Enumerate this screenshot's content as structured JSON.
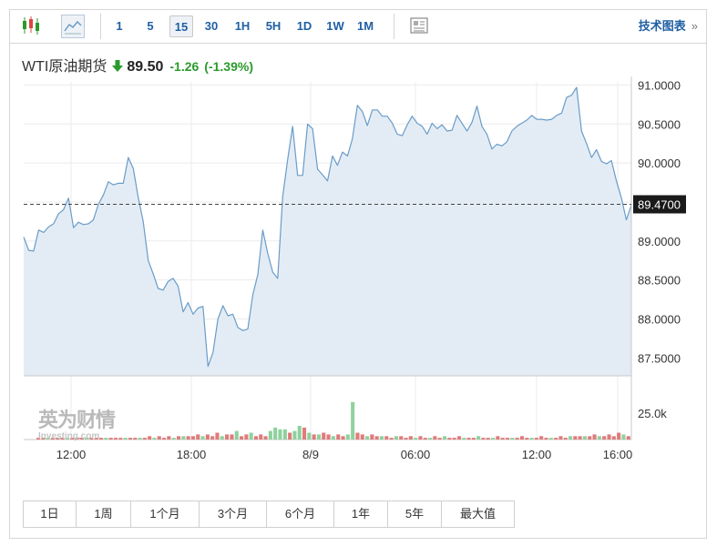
{
  "toolbar": {
    "intervals": [
      "1",
      "5",
      "15",
      "30",
      "1H",
      "5H",
      "1D",
      "1W",
      "1M"
    ],
    "active_interval": "15",
    "tech_chart_label": "技术图表",
    "tech_chart_chevron": "»"
  },
  "header": {
    "instrument": "WTI原油期货",
    "price": "89.50",
    "change": "-1.26",
    "change_pct": "(-1.39%)",
    "direction": "down"
  },
  "watermark": {
    "cn": "英为财情",
    "en": "Investing.com"
  },
  "colors": {
    "line": "#6a9cc8",
    "area": "#e3ecf5",
    "up_volume": "#8fd19e",
    "down_volume": "#e07b7b",
    "change_down": "#2b9a2b",
    "link": "#1f5fa3"
  },
  "chart_data": {
    "type": "area",
    "y_ticks": [
      "91.0000",
      "90.5000",
      "90.0000",
      "89.5000",
      "89.0000",
      "88.5000",
      "88.0000",
      "87.5000"
    ],
    "ylim": [
      87.27,
      91.04
    ],
    "x_ticks": [
      "12:00",
      "18:00",
      "8/9",
      "06:00",
      "12:00",
      "16:00"
    ],
    "current_price_label": "89.4700",
    "current_price": 89.47,
    "volume_tick": "25.0k",
    "prices": [
      89.05,
      88.88,
      88.87,
      89.14,
      89.11,
      89.18,
      89.22,
      89.35,
      89.4,
      89.55,
      89.17,
      89.24,
      89.21,
      89.22,
      89.27,
      89.47,
      89.59,
      89.76,
      89.72,
      89.74,
      89.74,
      90.07,
      89.93,
      89.56,
      89.25,
      88.75,
      88.58,
      88.39,
      88.37,
      88.48,
      88.52,
      88.42,
      88.09,
      88.21,
      88.06,
      88.14,
      88.16,
      87.39,
      87.57,
      88.0,
      88.17,
      88.04,
      88.06,
      87.89,
      87.85,
      87.87,
      88.31,
      88.57,
      89.14,
      88.84,
      88.6,
      88.52,
      89.57,
      90.05,
      90.47,
      89.84,
      89.84,
      90.5,
      90.44,
      89.92,
      89.85,
      89.77,
      90.09,
      89.97,
      90.14,
      90.09,
      90.31,
      90.74,
      90.66,
      90.48,
      90.68,
      90.68,
      90.6,
      90.6,
      90.51,
      90.37,
      90.35,
      90.49,
      90.6,
      90.51,
      90.47,
      90.37,
      90.51,
      90.44,
      90.49,
      90.41,
      90.42,
      90.61,
      90.51,
      90.41,
      90.52,
      90.73,
      90.47,
      90.37,
      90.18,
      90.24,
      90.22,
      90.27,
      90.41,
      90.47,
      90.51,
      90.55,
      90.61,
      90.56,
      90.56,
      90.55,
      90.56,
      90.61,
      90.64,
      90.84,
      90.87,
      90.97,
      90.41,
      90.25,
      90.07,
      90.17,
      90.02,
      89.99,
      90.03,
      89.77,
      89.55,
      89.27,
      89.46
    ],
    "volumes": [
      {
        "v": 1,
        "up": false
      },
      {
        "v": 1,
        "up": false
      },
      {
        "v": 1,
        "up": true
      },
      {
        "v": 1,
        "up": false
      },
      {
        "v": 1,
        "up": false
      },
      {
        "v": 1,
        "up": false
      },
      {
        "v": 1,
        "up": true
      },
      {
        "v": 1,
        "up": false
      },
      {
        "v": 1,
        "up": false
      },
      {
        "v": 1,
        "up": false
      },
      {
        "v": 1,
        "up": true
      },
      {
        "v": 1,
        "up": false
      },
      {
        "v": 1,
        "up": false
      },
      {
        "v": 1,
        "up": false
      },
      {
        "v": 1,
        "up": true
      },
      {
        "v": 1,
        "up": false
      },
      {
        "v": 1,
        "up": false
      },
      {
        "v": 1,
        "up": false
      },
      {
        "v": 1,
        "up": true
      },
      {
        "v": 1,
        "up": false
      },
      {
        "v": 1,
        "up": false
      },
      {
        "v": 1,
        "up": true
      },
      {
        "v": 1,
        "up": false
      },
      {
        "v": 2,
        "up": false
      },
      {
        "v": 1,
        "up": true
      },
      {
        "v": 2,
        "up": false
      },
      {
        "v": 1,
        "up": false
      },
      {
        "v": 2,
        "up": false
      },
      {
        "v": 1,
        "up": true
      },
      {
        "v": 2,
        "up": false
      },
      {
        "v": 2,
        "up": true
      },
      {
        "v": 2,
        "up": false
      },
      {
        "v": 2,
        "up": false
      },
      {
        "v": 3,
        "up": false
      },
      {
        "v": 2,
        "up": true
      },
      {
        "v": 3,
        "up": false
      },
      {
        "v": 2,
        "up": false
      },
      {
        "v": 4,
        "up": false
      },
      {
        "v": 2,
        "up": true
      },
      {
        "v": 3,
        "up": false
      },
      {
        "v": 3,
        "up": false
      },
      {
        "v": 5,
        "up": true
      },
      {
        "v": 2,
        "up": false
      },
      {
        "v": 3,
        "up": false
      },
      {
        "v": 4,
        "up": true
      },
      {
        "v": 2,
        "up": false
      },
      {
        "v": 3,
        "up": false
      },
      {
        "v": 2,
        "up": false
      },
      {
        "v": 5,
        "up": true
      },
      {
        "v": 7,
        "up": true
      },
      {
        "v": 6,
        "up": true
      },
      {
        "v": 6,
        "up": true
      },
      {
        "v": 4,
        "up": false
      },
      {
        "v": 5,
        "up": true
      },
      {
        "v": 8,
        "up": true
      },
      {
        "v": 7,
        "up": false
      },
      {
        "v": 4,
        "up": true
      },
      {
        "v": 3,
        "up": false
      },
      {
        "v": 3,
        "up": true
      },
      {
        "v": 4,
        "up": false
      },
      {
        "v": 3,
        "up": false
      },
      {
        "v": 2,
        "up": true
      },
      {
        "v": 3,
        "up": false
      },
      {
        "v": 2,
        "up": false
      },
      {
        "v": 3,
        "up": true
      },
      {
        "v": 22,
        "up": true
      },
      {
        "v": 4,
        "up": false
      },
      {
        "v": 3,
        "up": false
      },
      {
        "v": 2,
        "up": true
      },
      {
        "v": 3,
        "up": false
      },
      {
        "v": 2,
        "up": false
      },
      {
        "v": 2,
        "up": true
      },
      {
        "v": 2,
        "up": false
      },
      {
        "v": 1,
        "up": false
      },
      {
        "v": 2,
        "up": true
      },
      {
        "v": 2,
        "up": false
      },
      {
        "v": 1,
        "up": false
      },
      {
        "v": 2,
        "up": false
      },
      {
        "v": 1,
        "up": true
      },
      {
        "v": 2,
        "up": false
      },
      {
        "v": 1,
        "up": false
      },
      {
        "v": 1,
        "up": true
      },
      {
        "v": 2,
        "up": false
      },
      {
        "v": 1,
        "up": false
      },
      {
        "v": 2,
        "up": true
      },
      {
        "v": 1,
        "up": false
      },
      {
        "v": 1,
        "up": false
      },
      {
        "v": 2,
        "up": false
      },
      {
        "v": 1,
        "up": true
      },
      {
        "v": 1,
        "up": false
      },
      {
        "v": 1,
        "up": false
      },
      {
        "v": 2,
        "up": true
      },
      {
        "v": 1,
        "up": false
      },
      {
        "v": 1,
        "up": false
      },
      {
        "v": 1,
        "up": true
      },
      {
        "v": 2,
        "up": false
      },
      {
        "v": 1,
        "up": false
      },
      {
        "v": 1,
        "up": false
      },
      {
        "v": 1,
        "up": true
      },
      {
        "v": 1,
        "up": false
      },
      {
        "v": 2,
        "up": false
      },
      {
        "v": 1,
        "up": false
      },
      {
        "v": 1,
        "up": true
      },
      {
        "v": 1,
        "up": false
      },
      {
        "v": 2,
        "up": false
      },
      {
        "v": 1,
        "up": false
      },
      {
        "v": 1,
        "up": true
      },
      {
        "v": 1,
        "up": false
      },
      {
        "v": 2,
        "up": false
      },
      {
        "v": 1,
        "up": false
      },
      {
        "v": 2,
        "up": true
      },
      {
        "v": 2,
        "up": false
      },
      {
        "v": 2,
        "up": false
      },
      {
        "v": 2,
        "up": true
      },
      {
        "v": 2,
        "up": false
      },
      {
        "v": 3,
        "up": false
      },
      {
        "v": 2,
        "up": true
      },
      {
        "v": 2,
        "up": false
      },
      {
        "v": 3,
        "up": false
      },
      {
        "v": 2,
        "up": false
      },
      {
        "v": 4,
        "up": false
      },
      {
        "v": 3,
        "up": true
      },
      {
        "v": 2,
        "up": false
      }
    ],
    "grid": true
  },
  "ranges": [
    "1日",
    "1周",
    "1个月",
    "3个月",
    "6个月",
    "1年",
    "5年",
    "最大值"
  ]
}
